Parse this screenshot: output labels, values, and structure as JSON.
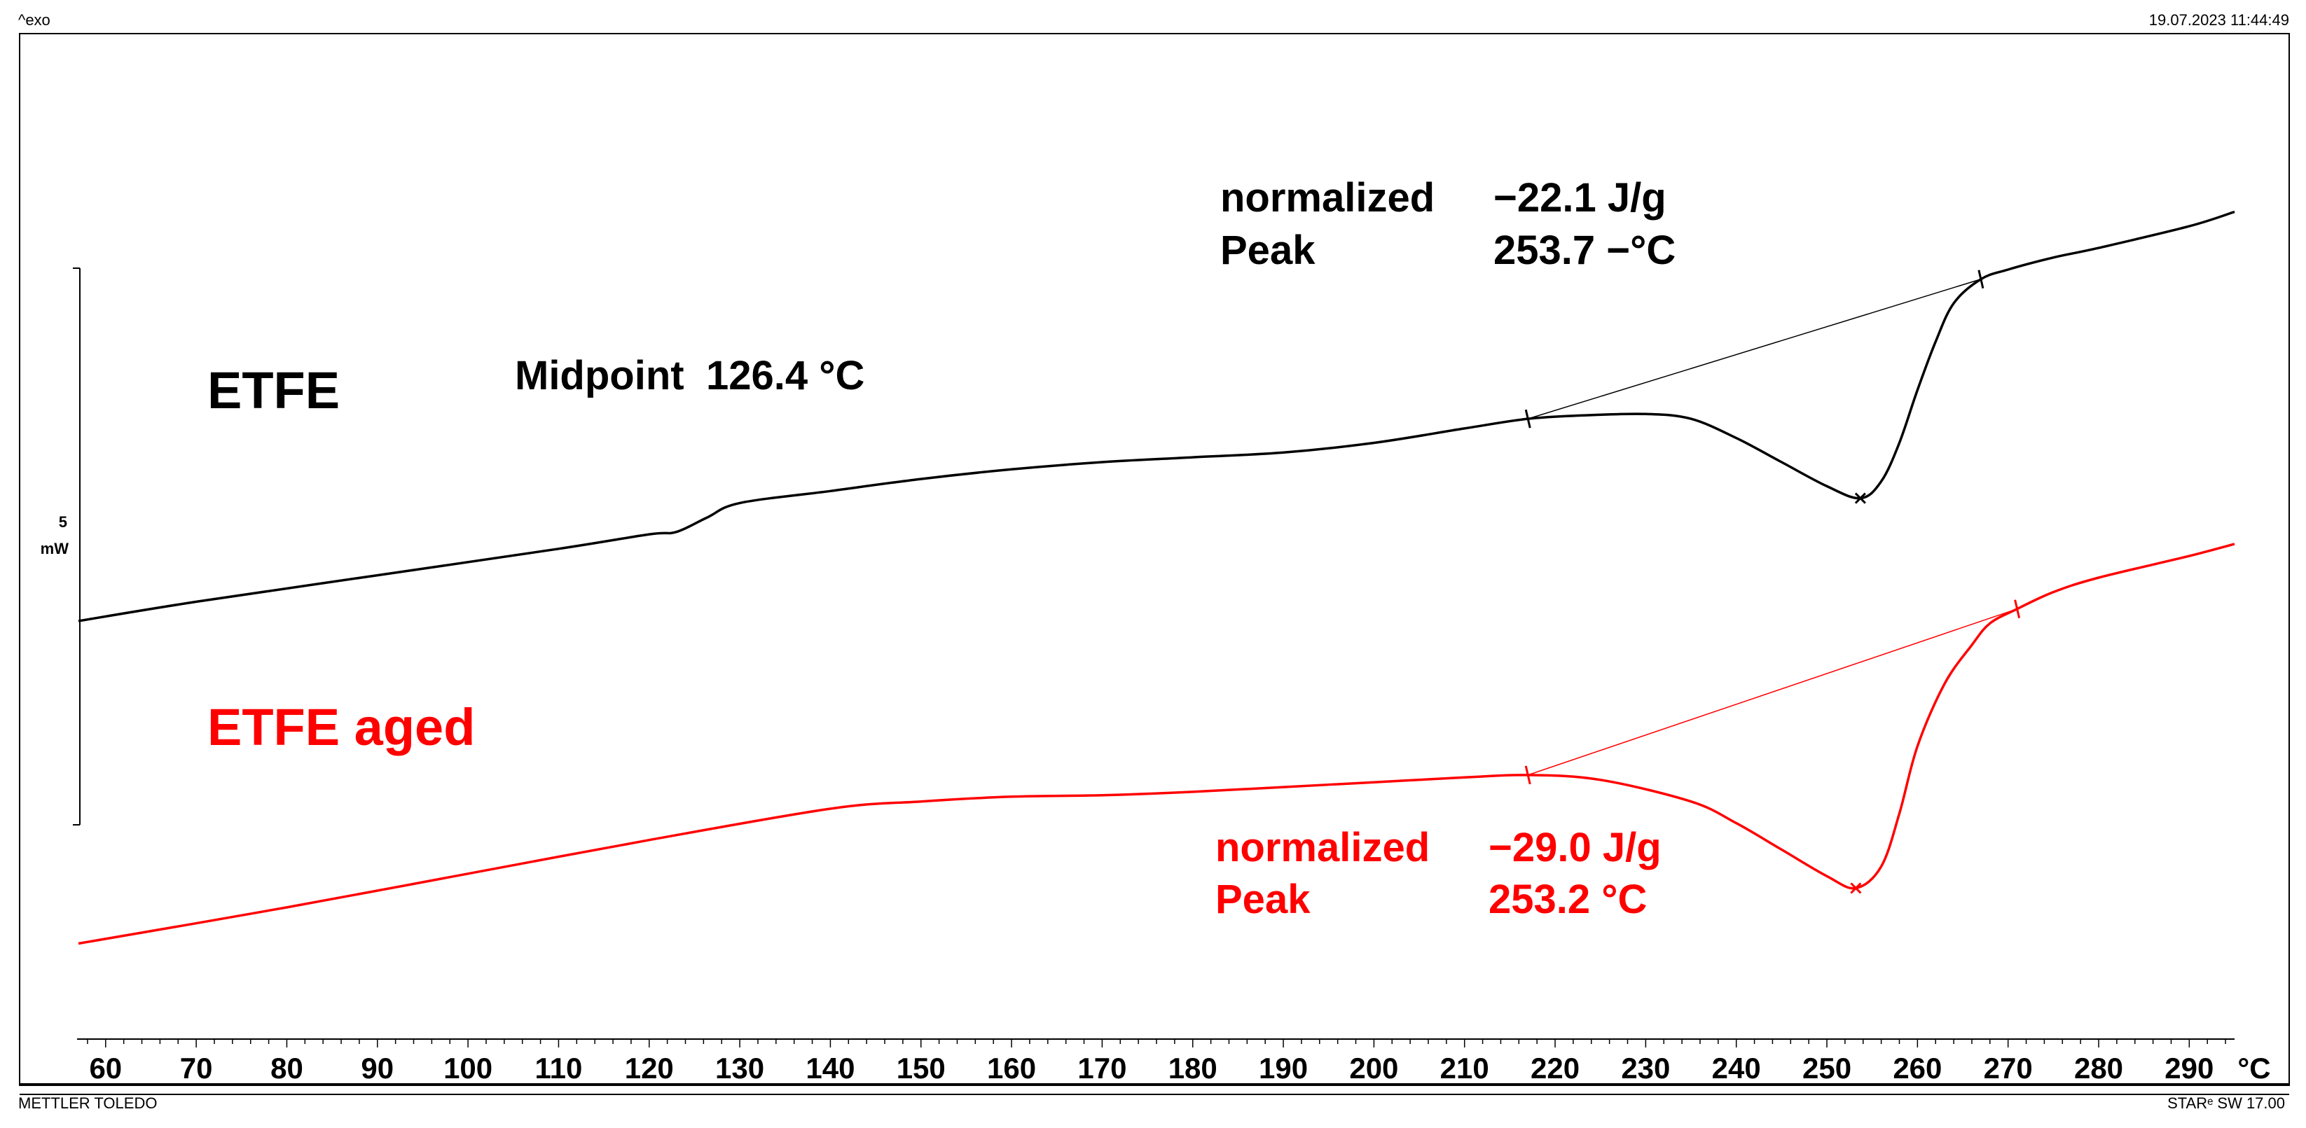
{
  "header": {
    "exo_label": "^exo",
    "datetime": "19.07.2023 11:44:49"
  },
  "footer": {
    "brand": "METTLER TOLEDO",
    "software": "STARᵉ SW 17.00"
  },
  "scale_bar": {
    "value": "5",
    "unit": "mW"
  },
  "colors": {
    "etfe": "#000000",
    "etfe_aged": "#ff0000",
    "frame": "#000000"
  },
  "chart_data": {
    "type": "line",
    "xlabel": "°C",
    "ylabel": "",
    "xlim": [
      57,
      295
    ],
    "ylim": [
      -7.9,
      11.3
    ],
    "tick_labels": [
      "60",
      "70",
      "80",
      "90",
      "100",
      "110",
      "120",
      "130",
      "140",
      "150",
      "160",
      "170",
      "180",
      "190",
      "200",
      "210",
      "220",
      "230",
      "240",
      "250",
      "260",
      "270",
      "280",
      "290"
    ],
    "series": [
      {
        "name": "ETFE",
        "label": "ETFE",
        "color": "#000000",
        "x": [
          57,
          70,
          90,
          110,
          120,
          123,
          126.4,
          130,
          140,
          150,
          160,
          170,
          180,
          190,
          200,
          210,
          217,
          223,
          230,
          235,
          240,
          245,
          250,
          253.7,
          256,
          258,
          260,
          262,
          264,
          267,
          270,
          275,
          280,
          290,
          295
        ],
        "y": [
          0.0,
          0.4,
          0.95,
          1.5,
          1.8,
          1.85,
          2.15,
          2.45,
          2.7,
          2.95,
          3.15,
          3.3,
          3.4,
          3.5,
          3.7,
          4.0,
          4.2,
          4.27,
          4.3,
          4.2,
          3.8,
          3.3,
          2.8,
          2.55,
          2.9,
          3.7,
          4.8,
          5.8,
          6.6,
          7.1,
          7.3,
          7.55,
          7.75,
          8.2,
          8.5
        ],
        "step": {
          "type": "glass transition",
          "label": "Midpoint",
          "value": "126.4 °C"
        },
        "integration": {
          "start": 217,
          "end": 267,
          "normalized_label": "normalized",
          "normalized_value": "−22.1 J/g",
          "peak_label": "Peak",
          "peak_value": "253.7 −°C",
          "peak_x": 253.7
        }
      },
      {
        "name": "ETFE aged",
        "label": "ETFE aged",
        "color": "#ff0000",
        "x": [
          57,
          80,
          100,
          120,
          140,
          150,
          160,
          170,
          180,
          190,
          200,
          210,
          217,
          225,
          235,
          240,
          245,
          250,
          253.2,
          256,
          258,
          260,
          263,
          266,
          268,
          271,
          275,
          280,
          290,
          295
        ],
        "y": [
          -6.7,
          -5.95,
          -5.25,
          -4.55,
          -3.9,
          -3.75,
          -3.65,
          -3.62,
          -3.55,
          -3.45,
          -3.35,
          -3.25,
          -3.2,
          -3.3,
          -3.75,
          -4.2,
          -4.75,
          -5.3,
          -5.55,
          -5.1,
          -4.0,
          -2.6,
          -1.3,
          -0.5,
          -0.05,
          0.25,
          0.6,
          0.9,
          1.35,
          1.6
        ],
        "integration": {
          "start": 217,
          "end": 271,
          "normalized_label": "normalized",
          "normalized_value": "−29.0 J/g",
          "peak_label": "Peak",
          "peak_value": "253.2 °C",
          "peak_x": 253.2
        }
      }
    ]
  }
}
